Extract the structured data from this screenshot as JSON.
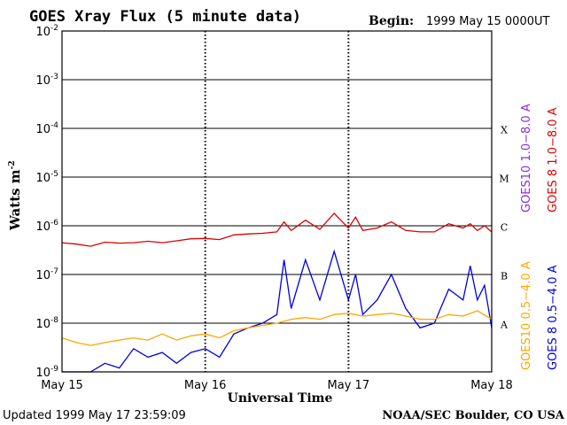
{
  "chart_data": {
    "type": "line",
    "title": "GOES Xray Flux (5 minute data)",
    "begin_label": "Begin:",
    "begin_value": "1999 May 15 0000UT",
    "ylabel": "Watts m",
    "ylabel_exp": "-2",
    "xlabel": "Universal Time",
    "x_ticks": [
      "May 15",
      "May 16",
      "May 17",
      "May 18"
    ],
    "y_ticks": [
      {
        "base": "10",
        "exp": "-2",
        "value": 0.01
      },
      {
        "base": "10",
        "exp": "-3",
        "value": 0.001
      },
      {
        "base": "10",
        "exp": "-4",
        "value": 0.0001
      },
      {
        "base": "10",
        "exp": "-5",
        "value": 1e-05
      },
      {
        "base": "10",
        "exp": "-6",
        "value": 1e-06
      },
      {
        "base": "10",
        "exp": "-7",
        "value": 1e-07
      },
      {
        "base": "10",
        "exp": "-8",
        "value": 1e-08
      },
      {
        "base": "10",
        "exp": "-9",
        "value": 1e-09
      }
    ],
    "ylim": [
      1e-09,
      0.01
    ],
    "y_scale": "log",
    "xlim_days": [
      0,
      3
    ],
    "grid": true,
    "flare_classes": [
      {
        "label": "X",
        "value": 0.0001
      },
      {
        "label": "M",
        "value": 1e-05
      },
      {
        "label": "C",
        "value": 1e-06
      },
      {
        "label": "B",
        "value": 1e-07
      },
      {
        "label": "A",
        "value": 1e-08
      }
    ],
    "legend": [
      {
        "label": "GOES10 1.0−8.0 A",
        "color": "#8a2be2"
      },
      {
        "label": "GOES 8 1.0−8.0 A",
        "color": "#dd0000"
      },
      {
        "label": "GOES10 0.5−4.0 A",
        "color": "#ffa500"
      },
      {
        "label": "GOES 8 0.5−4.0 A",
        "color": "#0000dd"
      }
    ],
    "legend_placement": "right, vertical",
    "series": [
      {
        "name": "GOES 8 1.0−8.0 A",
        "color": "#dd0000",
        "x_days": [
          0,
          0.1,
          0.2,
          0.3,
          0.4,
          0.5,
          0.6,
          0.7,
          0.8,
          0.9,
          1.0,
          1.1,
          1.2,
          1.3,
          1.4,
          1.5,
          1.55,
          1.6,
          1.7,
          1.8,
          1.9,
          2.0,
          2.05,
          2.1,
          2.2,
          2.3,
          2.4,
          2.5,
          2.6,
          2.7,
          2.8,
          2.85,
          2.9,
          2.95,
          3.0
        ],
        "y": [
          4.5e-07,
          4.2e-07,
          3.8e-07,
          4.6e-07,
          4.4e-07,
          4.5e-07,
          4.8e-07,
          4.5e-07,
          4.9e-07,
          5.4e-07,
          5.5e-07,
          5.2e-07,
          6.5e-07,
          6.8e-07,
          7e-07,
          7.5e-07,
          1.2e-06,
          8e-07,
          1.3e-06,
          8.5e-07,
          1.8e-06,
          9e-07,
          1.5e-06,
          8e-07,
          9e-07,
          1.2e-06,
          8e-07,
          7.5e-07,
          7.5e-07,
          1.1e-06,
          9e-07,
          1.1e-06,
          8e-07,
          1e-06,
          7.5e-07
        ]
      },
      {
        "name": "GOES 8 0.5−4.0 A",
        "color": "#0000dd",
        "x_days": [
          0,
          0.1,
          0.2,
          0.3,
          0.4,
          0.5,
          0.6,
          0.7,
          0.8,
          0.9,
          1.0,
          1.1,
          1.2,
          1.3,
          1.4,
          1.5,
          1.55,
          1.6,
          1.7,
          1.8,
          1.9,
          2.0,
          2.05,
          2.1,
          2.2,
          2.3,
          2.4,
          2.5,
          2.6,
          2.7,
          2.8,
          2.85,
          2.9,
          2.95,
          3.0
        ],
        "y": [
          1e-09,
          1e-09,
          1e-09,
          1.5e-09,
          1.2e-09,
          3e-09,
          2e-09,
          2.5e-09,
          1.5e-09,
          2.5e-09,
          3e-09,
          2e-09,
          6e-09,
          8e-09,
          1e-08,
          1.5e-08,
          2e-07,
          2e-08,
          2e-07,
          3e-08,
          3e-07,
          3e-08,
          1e-07,
          1.5e-08,
          3e-08,
          1e-07,
          2e-08,
          8e-09,
          1e-08,
          5e-08,
          3e-08,
          1.5e-07,
          3e-08,
          6e-08,
          8e-09
        ]
      },
      {
        "name": "GOES10 0.5−4.0 A",
        "color": "#ffa500",
        "x_days": [
          0,
          0.1,
          0.2,
          0.3,
          0.4,
          0.5,
          0.6,
          0.7,
          0.8,
          0.9,
          1.0,
          1.1,
          1.2,
          1.3,
          1.4,
          1.5,
          1.6,
          1.7,
          1.8,
          1.9,
          2.0,
          2.1,
          2.2,
          2.3,
          2.4,
          2.5,
          2.6,
          2.7,
          2.8,
          2.9,
          3.0
        ],
        "y": [
          5e-09,
          4e-09,
          3.5e-09,
          4e-09,
          4.5e-09,
          5e-09,
          4.5e-09,
          6e-09,
          4.5e-09,
          5.5e-09,
          6e-09,
          5e-09,
          7e-09,
          8e-09,
          9e-09,
          1e-08,
          1.2e-08,
          1.3e-08,
          1.2e-08,
          1.5e-08,
          1.6e-08,
          1.4e-08,
          1.5e-08,
          1.6e-08,
          1.4e-08,
          1.2e-08,
          1.2e-08,
          1.5e-08,
          1.4e-08,
          1.8e-08,
          1.2e-08
        ]
      }
    ],
    "footer_left": "Updated 1999 May 17 23:59:09",
    "footer_right": "NOAA/SEC Boulder, CO USA",
    "colors": {
      "axis": "#000000",
      "grid": "#000000"
    }
  }
}
